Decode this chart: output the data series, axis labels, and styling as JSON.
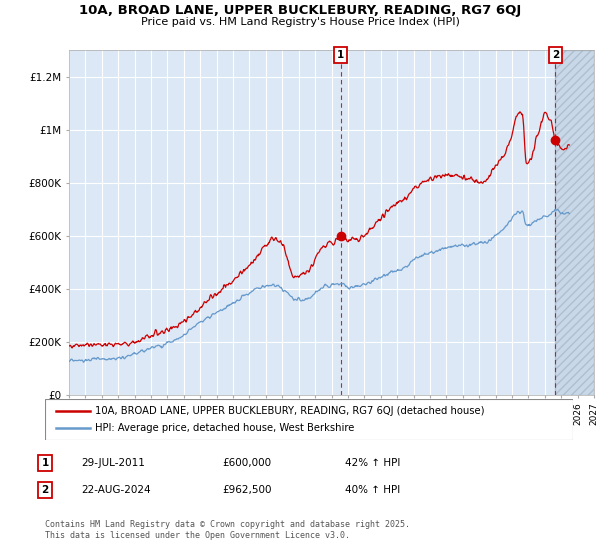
{
  "title": "10A, BROAD LANE, UPPER BUCKLEBURY, READING, RG7 6QJ",
  "subtitle": "Price paid vs. HM Land Registry's House Price Index (HPI)",
  "legend_property": "10A, BROAD LANE, UPPER BUCKLEBURY, READING, RG7 6QJ (detached house)",
  "legend_hpi": "HPI: Average price, detached house, West Berkshire",
  "transaction1_date": "29-JUL-2011",
  "transaction1_price": "£600,000",
  "transaction1_hpi": "42% ↑ HPI",
  "transaction2_date": "22-AUG-2024",
  "transaction2_price": "£962,500",
  "transaction2_hpi": "40% ↑ HPI",
  "copyright": "Contains HM Land Registry data © Crown copyright and database right 2025.\nThis data is licensed under the Open Government Licence v3.0.",
  "xmin": 1995,
  "xmax": 2027,
  "ymin": 0,
  "ymax": 1300000,
  "property_color": "#cc0000",
  "hpi_color": "#6699cc",
  "vline_color": "#cc0000",
  "plot_bg_color": "#dce8f5",
  "grid_color": "#ffffff",
  "hatch_bg_color": "#c8d8e8",
  "marker1_x": 2011.57,
  "marker1_y": 600000,
  "marker2_x": 2024.64,
  "marker2_y": 962500,
  "yticks": [
    0,
    200000,
    400000,
    600000,
    800000,
    1000000,
    1200000
  ],
  "ytick_labels": [
    "£0",
    "£200K",
    "£400K",
    "£600K",
    "£800K",
    "£1M",
    "£1.2M"
  ]
}
